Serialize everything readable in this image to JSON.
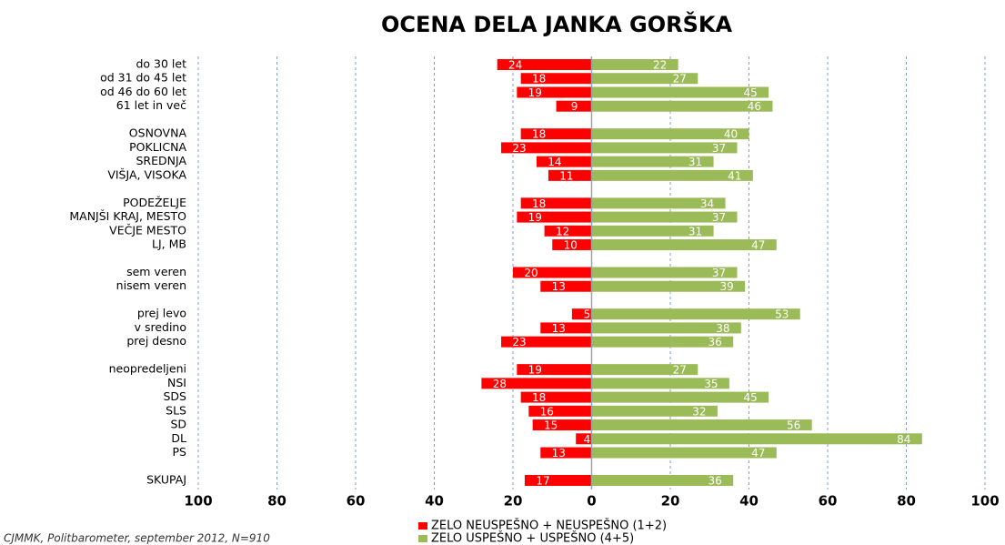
{
  "chart_data": {
    "type": "diverging-bar",
    "title": "OCENA DELA JANKA GORŠKA",
    "source": "CJMMK, Politbarometer, september 2012, N=910",
    "categories": [
      "do 30 let",
      "od 31 do 45 let",
      "od 46 do 60 let",
      "61 let in več",
      null,
      "OSNOVNA",
      "POKLICNA",
      "SREDNJA",
      "VIŠJA, VISOKA",
      null,
      "PODEŽELJE",
      "MANJŠI KRAJ, MESTO",
      "VEČJE MESTO",
      "LJ, MB",
      null,
      "sem veren",
      "nisem veren",
      null,
      "prej levo",
      "v sredino",
      "prej desno",
      null,
      "neopredeljeni",
      "NSI",
      "SDS",
      "SLS",
      "SD",
      "DL",
      "PS",
      null,
      "SKUPAJ"
    ],
    "series": [
      {
        "name": "ZELO NEUSPEŠNO + NEUSPEŠNO (1+2)",
        "color": "#ff0000",
        "values": [
          -24,
          -18,
          -19,
          -9,
          null,
          -18,
          -23,
          -14,
          -11,
          null,
          -18,
          -19,
          -12,
          -10,
          null,
          -20,
          -13,
          null,
          -5,
          -13,
          -23,
          null,
          -19,
          -28,
          -18,
          -16,
          -15,
          -4,
          -13,
          null,
          -17
        ],
        "value_labels": [
          "24",
          "18",
          "19",
          "9",
          null,
          "18",
          "23",
          "14",
          "11",
          null,
          "18",
          "19",
          "12",
          "10",
          null,
          "20",
          "13",
          null,
          "5",
          "13",
          "23",
          null,
          "19",
          "28",
          "18",
          "16",
          "15",
          "4",
          "13",
          null,
          "17"
        ]
      },
      {
        "name": "ZELO USPEŠNO + USPEŠNO (4+5)",
        "color": "#9bbb59",
        "values": [
          22,
          27,
          45,
          46,
          null,
          40,
          37,
          31,
          41,
          null,
          34,
          37,
          31,
          47,
          null,
          37,
          39,
          null,
          53,
          38,
          36,
          null,
          27,
          35,
          45,
          32,
          56,
          84,
          47,
          null,
          36
        ]
      }
    ],
    "xlim": [
      -100,
      100
    ],
    "xticks": [
      {
        "value": -100,
        "label": "100"
      },
      {
        "value": -80,
        "label": "80"
      },
      {
        "value": -60,
        "label": "60"
      },
      {
        "value": -40,
        "label": "40"
      },
      {
        "value": -20,
        "label": "20"
      },
      0,
      20,
      40,
      60,
      80,
      100
    ],
    "grid": true
  }
}
